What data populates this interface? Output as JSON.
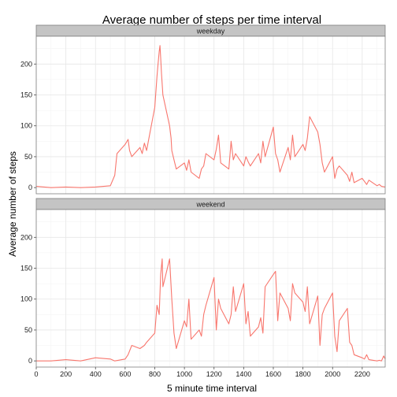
{
  "chart_data": {
    "type": "line",
    "title": "Average number of steps per time interval",
    "xlabel": "5 minute time interval",
    "ylabel": "Average number of steps",
    "xlim": [
      0,
      2355
    ],
    "ylim": [
      -10,
      245
    ],
    "xticks": [
      0,
      200,
      400,
      600,
      800,
      1000,
      1200,
      1400,
      1600,
      1800,
      2000,
      2200
    ],
    "yticks": [
      0,
      50,
      100,
      150,
      200
    ],
    "grid": true,
    "line_color": "#F8766D",
    "facets": [
      {
        "label": "weekday",
        "x": [
          0,
          100,
          200,
          300,
          400,
          500,
          530,
          545,
          600,
          620,
          630,
          645,
          700,
          715,
          730,
          745,
          800,
          815,
          820,
          830,
          835,
          840,
          845,
          855,
          900,
          910,
          915,
          930,
          945,
          1000,
          1015,
          1030,
          1045,
          1100,
          1115,
          1130,
          1145,
          1200,
          1215,
          1230,
          1245,
          1300,
          1315,
          1330,
          1345,
          1400,
          1415,
          1430,
          1445,
          1500,
          1515,
          1530,
          1545,
          1600,
          1615,
          1630,
          1645,
          1700,
          1715,
          1730,
          1745,
          1800,
          1815,
          1830,
          1845,
          1900,
          1915,
          1930,
          1945,
          2000,
          2015,
          2030,
          2045,
          2100,
          2115,
          2130,
          2145,
          2200,
          2215,
          2230,
          2245,
          2300,
          2315,
          2330,
          2355
        ],
        "y": [
          2,
          0,
          1,
          0,
          1,
          3,
          20,
          55,
          70,
          78,
          60,
          50,
          65,
          55,
          72,
          60,
          130,
          180,
          195,
          220,
          230,
          210,
          185,
          150,
          100,
          80,
          60,
          45,
          30,
          40,
          28,
          45,
          25,
          15,
          30,
          35,
          55,
          45,
          62,
          85,
          40,
          30,
          75,
          45,
          55,
          35,
          50,
          42,
          35,
          55,
          40,
          75,
          50,
          98,
          55,
          45,
          25,
          65,
          45,
          85,
          50,
          70,
          60,
          80,
          115,
          90,
          70,
          40,
          25,
          50,
          15,
          30,
          35,
          20,
          10,
          25,
          8,
          15,
          10,
          5,
          12,
          3,
          5,
          2,
          1
        ]
      },
      {
        "label": "weekend",
        "x": [
          0,
          100,
          200,
          300,
          400,
          500,
          530,
          600,
          620,
          645,
          700,
          730,
          745,
          800,
          815,
          830,
          840,
          850,
          855,
          900,
          915,
          930,
          945,
          1000,
          1015,
          1030,
          1045,
          1100,
          1115,
          1130,
          1145,
          1200,
          1215,
          1230,
          1245,
          1300,
          1315,
          1330,
          1345,
          1400,
          1415,
          1430,
          1445,
          1500,
          1515,
          1530,
          1545,
          1600,
          1615,
          1630,
          1645,
          1700,
          1715,
          1730,
          1745,
          1800,
          1815,
          1830,
          1845,
          1900,
          1915,
          1930,
          1945,
          2000,
          2015,
          2030,
          2045,
          2100,
          2115,
          2130,
          2145,
          2200,
          2215,
          2230,
          2245,
          2300,
          2315,
          2330,
          2345,
          2355
        ],
        "y": [
          0,
          0,
          2,
          0,
          5,
          3,
          0,
          3,
          10,
          25,
          20,
          25,
          30,
          45,
          90,
          75,
          140,
          165,
          120,
          165,
          100,
          45,
          20,
          65,
          55,
          100,
          35,
          50,
          40,
          75,
          90,
          135,
          50,
          100,
          85,
          60,
          75,
          120,
          80,
          125,
          60,
          80,
          40,
          55,
          70,
          45,
          120,
          140,
          145,
          65,
          110,
          85,
          65,
          125,
          110,
          95,
          80,
          120,
          60,
          105,
          25,
          75,
          85,
          110,
          40,
          15,
          65,
          85,
          30,
          25,
          10,
          5,
          3,
          10,
          2,
          0,
          1,
          0,
          8,
          3
        ]
      }
    ]
  }
}
